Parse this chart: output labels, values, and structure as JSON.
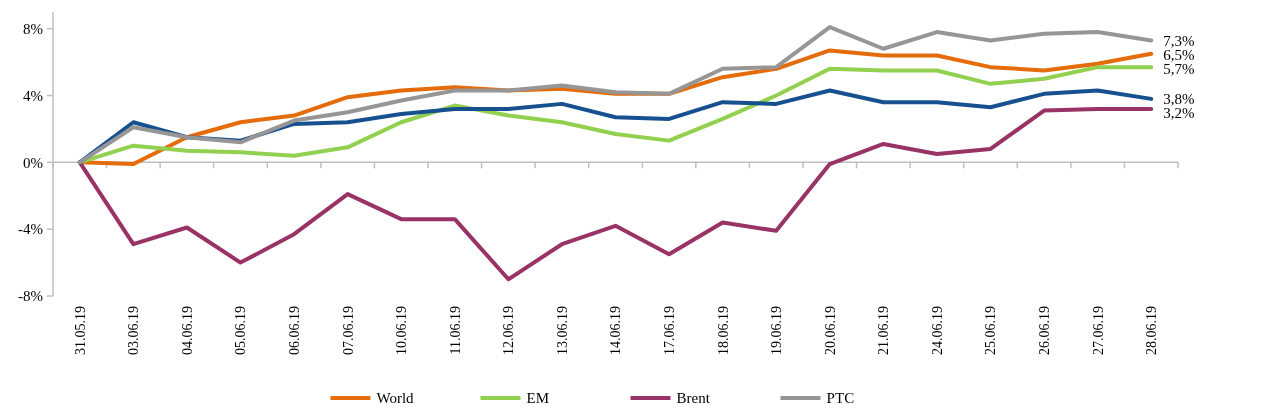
{
  "chart_data": {
    "type": "line",
    "categories": [
      "31.05.19",
      "03.06.19",
      "04.06.19",
      "05.06.19",
      "06.06.19",
      "07.06.19",
      "10.06.19",
      "11.06.19",
      "12.06.19",
      "13.06.19",
      "14.06.19",
      "17.06.19",
      "18.06.19",
      "19.06.19",
      "20.06.19",
      "21.06.19",
      "24.06.19",
      "25.06.19",
      "26.06.19",
      "27.06.19",
      "28.06.19"
    ],
    "series": [
      {
        "name": "World",
        "color": "#e46c0a",
        "values": [
          0,
          -0.1,
          1.5,
          2.4,
          2.8,
          3.9,
          4.3,
          4.5,
          4.3,
          4.4,
          4.1,
          4.1,
          5.1,
          5.6,
          6.7,
          6.4,
          6.4,
          5.7,
          5.5,
          5.9,
          6.5
        ],
        "value_labels": [
          null,
          null,
          null,
          null,
          null,
          null,
          null,
          null,
          null,
          null,
          null,
          null,
          null,
          null,
          null,
          null,
          null,
          null,
          null,
          null,
          "6,5%"
        ]
      },
      {
        "name": "EM",
        "color": "#92d050",
        "values": [
          0,
          1.0,
          0.7,
          0.6,
          0.4,
          0.9,
          2.4,
          3.4,
          2.8,
          2.4,
          1.7,
          1.3,
          2.6,
          4.0,
          5.6,
          5.5,
          5.5,
          4.7,
          5.0,
          5.7,
          5.7
        ],
        "value_labels": [
          null,
          null,
          null,
          null,
          null,
          null,
          null,
          null,
          null,
          null,
          null,
          null,
          null,
          null,
          null,
          null,
          null,
          null,
          null,
          null,
          "5,7%"
        ]
      },
      {
        "name": "Brent",
        "color": "#993366",
        "values": [
          0,
          -4.9,
          -3.9,
          -6.0,
          -4.3,
          -1.9,
          -3.4,
          -3.4,
          -7.0,
          -4.9,
          -3.8,
          -5.5,
          -3.6,
          -4.1,
          -0.1,
          1.1,
          0.5,
          0.8,
          3.1,
          3.2,
          3.2
        ],
        "value_labels": [
          null,
          null,
          null,
          null,
          null,
          null,
          null,
          null,
          null,
          null,
          null,
          null,
          null,
          null,
          null,
          null,
          null,
          null,
          null,
          null,
          "3,2%"
        ]
      },
      {
        "color": "#17508f",
        "values": [
          0,
          2.4,
          1.5,
          1.3,
          2.3,
          2.4,
          2.9,
          3.2,
          3.2,
          3.5,
          2.7,
          2.6,
          3.6,
          3.5,
          4.3,
          3.6,
          3.6,
          3.3,
          4.1,
          4.3,
          3.8
        ],
        "value_labels": [
          null,
          null,
          null,
          null,
          null,
          null,
          null,
          null,
          null,
          null,
          null,
          null,
          null,
          null,
          null,
          null,
          null,
          null,
          null,
          null,
          "3,8%"
        ]
      },
      {
        "name": "РТС",
        "color": "#969696",
        "values": [
          0,
          2.1,
          1.5,
          1.2,
          2.5,
          3.0,
          3.7,
          4.3,
          4.3,
          4.6,
          4.2,
          4.1,
          5.6,
          5.7,
          8.1,
          6.8,
          7.8,
          7.3,
          7.7,
          7.8,
          7.3
        ],
        "value_labels": [
          null,
          null,
          null,
          null,
          null,
          null,
          null,
          null,
          null,
          null,
          null,
          null,
          null,
          null,
          null,
          null,
          null,
          null,
          null,
          null,
          "7,3%"
        ]
      }
    ],
    "ylim": [
      -8,
      9
    ],
    "yticks": [
      {
        "value": -8,
        "label": "-8%"
      },
      {
        "value": -4,
        "label": "-4%"
      },
      {
        "value": 0,
        "label": "0%"
      },
      {
        "value": 4,
        "label": "4%"
      },
      {
        "value": 8,
        "label": "8%"
      }
    ],
    "legend": "bottom",
    "marker": "none",
    "line_style": "solid"
  }
}
